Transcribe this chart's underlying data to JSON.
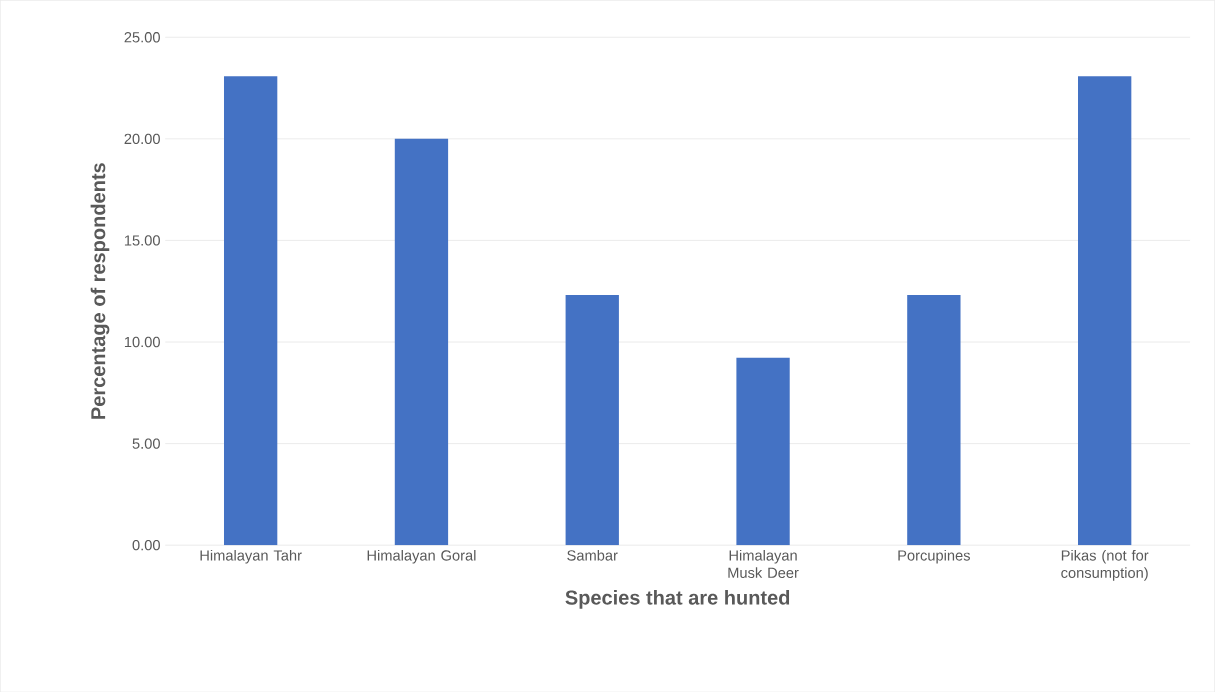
{
  "chart_data": {
    "type": "bar",
    "xlabel": "Species that are hunted",
    "ylabel": "Percentage of respondents",
    "categories": [
      "Himalayan Tahr",
      "Himalayan Goral",
      "Sambar",
      "Himalayan Musk Deer",
      "Porcupines",
      "Pikas (not for consumption)"
    ],
    "values": [
      23.08,
      20.0,
      12.31,
      9.23,
      12.31,
      23.08
    ],
    "color": "#4472c4",
    "ylim": [
      0,
      25
    ],
    "yticks": [
      {
        "value": 0,
        "label": "0.00"
      },
      {
        "value": 5,
        "label": "5.00"
      },
      {
        "value": 10,
        "label": "10.00"
      },
      {
        "value": 15,
        "label": "15.00"
      },
      {
        "value": 20,
        "label": "20.00"
      },
      {
        "value": 25,
        "label": "25.00"
      }
    ],
    "grid": "y"
  }
}
